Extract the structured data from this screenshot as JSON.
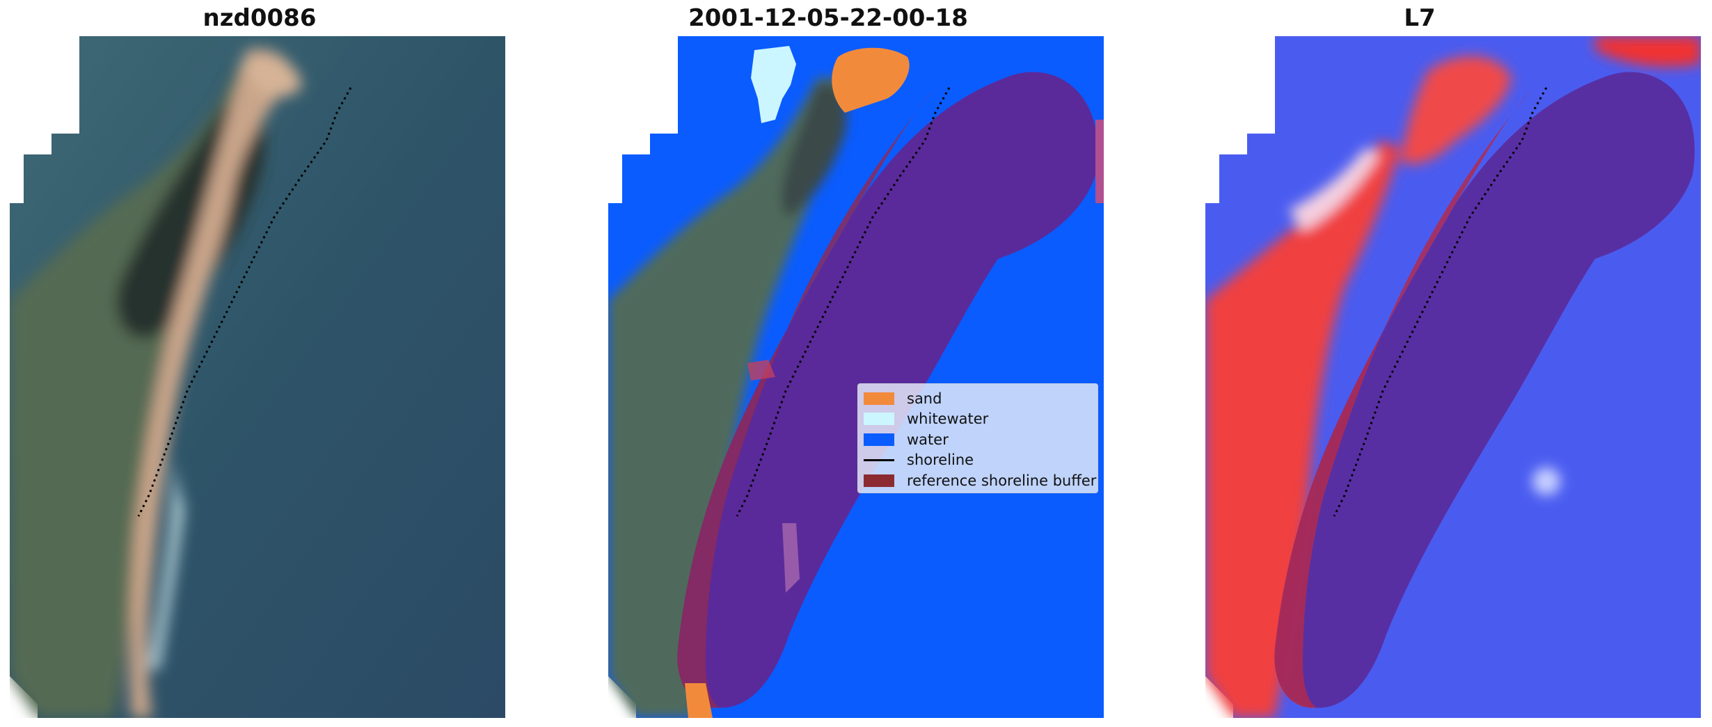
{
  "panels": [
    {
      "title": "nzd0086"
    },
    {
      "title": "2001-12-05-22-00-18"
    },
    {
      "title": "L7"
    }
  ],
  "legend": {
    "items": [
      {
        "label": "sand",
        "color": "#f28a3c"
      },
      {
        "label": "whitewater",
        "color": "#ccf6ff"
      },
      {
        "label": "water",
        "color": "#0a5cff"
      },
      {
        "label": "shoreline",
        "color": "#000000"
      },
      {
        "label": "reference shoreline buffer",
        "color": "#8c2a32"
      }
    ]
  },
  "colors": {
    "water_class": "#0a5cff",
    "buffer": "#5a2a9a",
    "land_red": "#f04040",
    "water_blue": "#4a5cf0"
  }
}
